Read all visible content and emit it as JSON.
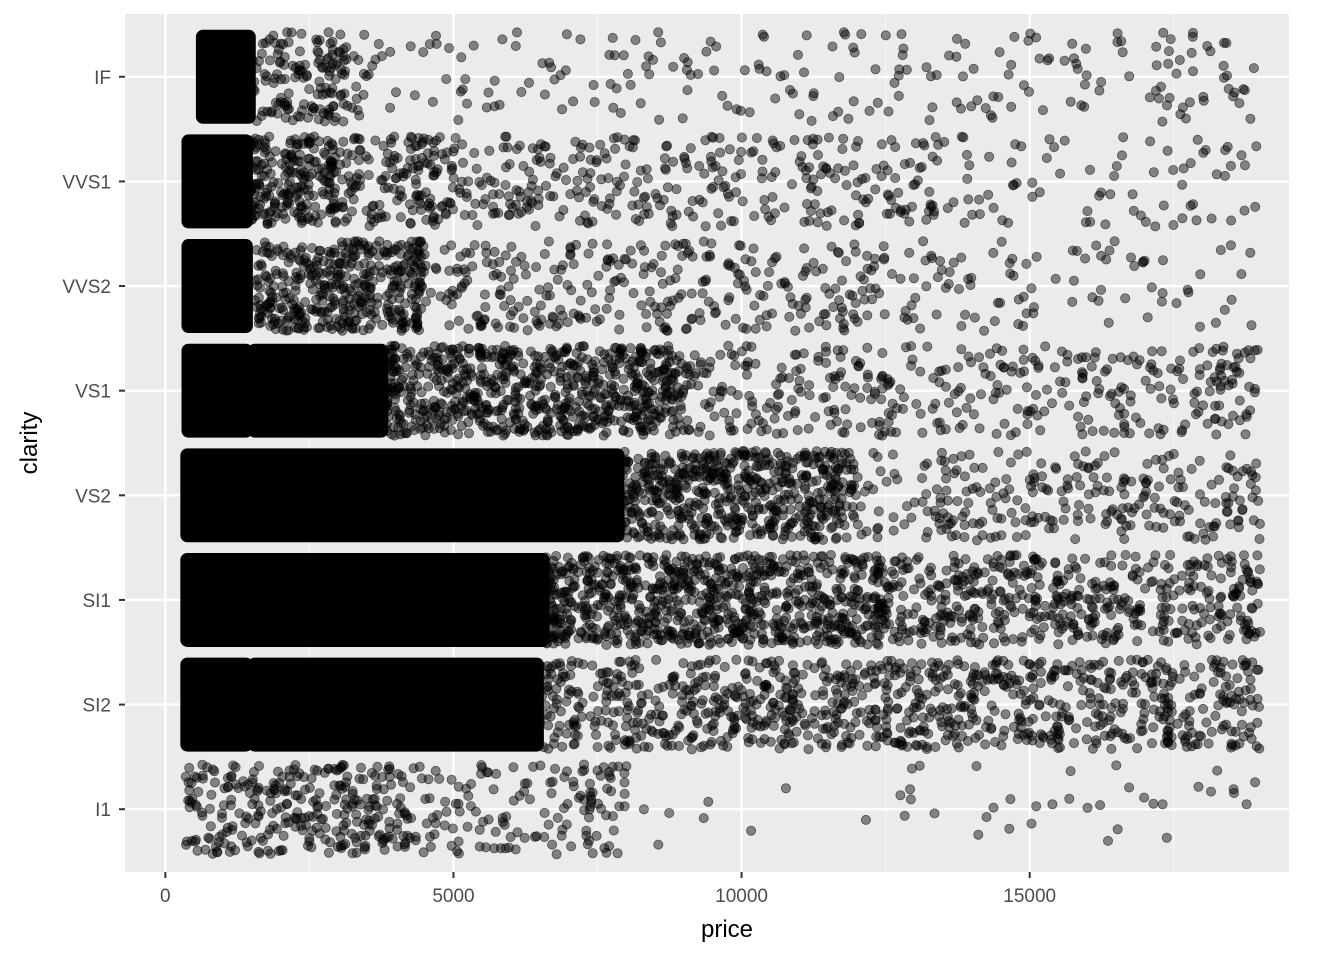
{
  "chart_data": {
    "type": "scatter",
    "title": "",
    "xlabel": "price",
    "ylabel": "clarity",
    "xlim": [
      -700,
      19500
    ],
    "x_ticks": [
      0,
      5000,
      10000,
      15000
    ],
    "x_tick_labels": [
      "0",
      "5000",
      "10000",
      "15000"
    ],
    "categories": [
      "I1",
      "SI2",
      "SI1",
      "VS2",
      "VS1",
      "VVS2",
      "VVS1",
      "IF"
    ],
    "jitter": {
      "x": "small",
      "y": "±0.4 category"
    },
    "point_color": "#000000",
    "point_opacity": 0.45,
    "grid": true,
    "panel_background": "#ebebeb",
    "grid_color": "#ffffff",
    "series": [
      {
        "category": "IF",
        "segments": [
          {
            "x_range": [
              600,
              1500
            ],
            "density": "solid"
          },
          {
            "x_range": [
              1500,
              3500
            ],
            "density": "dense"
          },
          {
            "x_range": [
              3500,
              19000
            ],
            "density": "sparse"
          }
        ]
      },
      {
        "category": "VVS1",
        "segments": [
          {
            "x_range": [
              350,
              1450
            ],
            "density": "solid"
          },
          {
            "x_range": [
              1450,
              3000
            ],
            "density": "very-dense"
          },
          {
            "x_range": [
              3000,
              5000
            ],
            "density": "dense"
          },
          {
            "x_range": [
              5000,
              13500
            ],
            "density": "medium"
          },
          {
            "x_range": [
              13500,
              19000
            ],
            "density": "sparse"
          }
        ]
      },
      {
        "category": "VVS2",
        "segments": [
          {
            "x_range": [
              350,
              1450
            ],
            "density": "solid"
          },
          {
            "x_range": [
              1550,
              4500
            ],
            "density": "very-dense"
          },
          {
            "x_range": [
              4500,
              12500
            ],
            "density": "medium"
          },
          {
            "x_range": [
              12500,
              19000
            ],
            "density": "sparse"
          }
        ]
      },
      {
        "category": "VS1",
        "segments": [
          {
            "x_range": [
              350,
              1450
            ],
            "density": "solid"
          },
          {
            "x_range": [
              1500,
              3800
            ],
            "density": "solid"
          },
          {
            "x_range": [
              3800,
              9000
            ],
            "density": "very-dense"
          },
          {
            "x_range": [
              9000,
              19000
            ],
            "density": "medium"
          }
        ]
      },
      {
        "category": "VS2",
        "segments": [
          {
            "x_range": [
              330,
              7900
            ],
            "density": "solid"
          },
          {
            "x_range": [
              7900,
              12000
            ],
            "density": "very-dense"
          },
          {
            "x_range": [
              12000,
              19000
            ],
            "density": "medium"
          }
        ]
      },
      {
        "category": "SI1",
        "segments": [
          {
            "x_range": [
              330,
              6600
            ],
            "density": "solid"
          },
          {
            "x_range": [
              6600,
              12500
            ],
            "density": "very-dense"
          },
          {
            "x_range": [
              12500,
              19000
            ],
            "density": "dense"
          }
        ]
      },
      {
        "category": "SI2",
        "segments": [
          {
            "x_range": [
              330,
              1450
            ],
            "density": "solid"
          },
          {
            "x_range": [
              1500,
              6500
            ],
            "density": "solid"
          },
          {
            "x_range": [
              6500,
              19000
            ],
            "density": "dense"
          }
        ]
      },
      {
        "category": "I1",
        "segments": [
          {
            "x_range": [
              350,
              4200
            ],
            "density": "dense"
          },
          {
            "x_range": [
              4200,
              8000
            ],
            "density": "medium"
          },
          {
            "x_range": [
              8000,
              19000
            ],
            "density": "very-sparse"
          }
        ]
      }
    ]
  }
}
